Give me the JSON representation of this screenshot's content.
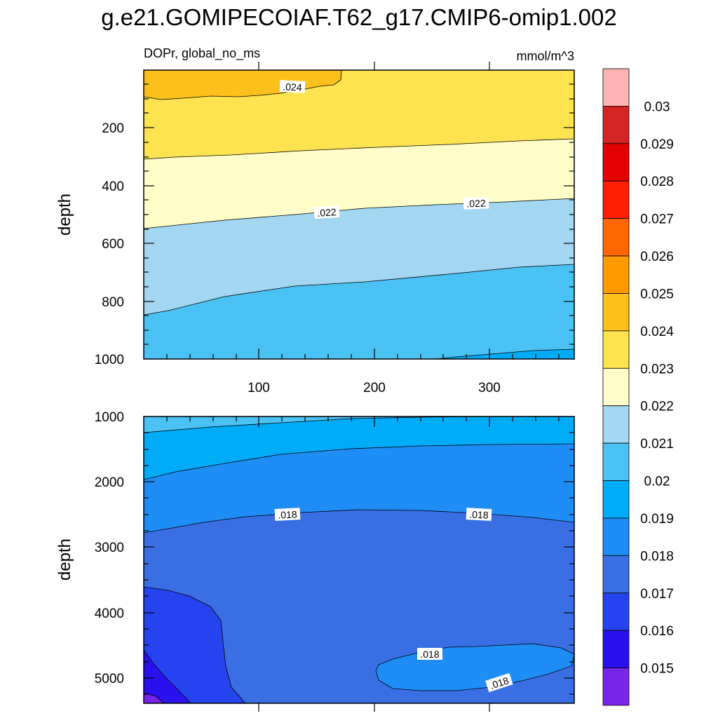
{
  "title": "g.e21.GOMIPECOIAF.T62_g17.CMIP6-omip1.002",
  "chart_data": [
    {
      "type": "contour",
      "panel": "upper",
      "left_string": "DOPr, global_no_ms",
      "right_string": "mmol/m^3",
      "xlabel": "",
      "ylabel": "depth",
      "xlim": [
        0,
        375
      ],
      "ylim": [
        1000,
        0
      ],
      "x_ticks": [
        "100",
        "200",
        "300"
      ],
      "y_ticks": [
        "200",
        "400",
        "600",
        "800",
        "1000"
      ],
      "y_tick_values": [
        200,
        400,
        600,
        800,
        1000
      ],
      "contour_labels": [
        ".024",
        ".022",
        ".022"
      ],
      "bands": [
        {
          "level": "0.024-0.025",
          "color": "#fcc01c"
        },
        {
          "level": "0.023-0.024",
          "color": "#fee350"
        },
        {
          "level": "0.022-0.023",
          "color": "#fffec8"
        },
        {
          "level": "0.021-0.022",
          "color": "#a3d6f0"
        },
        {
          "level": "0.020-0.021",
          "color": "#4bc2f4"
        },
        {
          "level": "0.019-0.020",
          "color": "#00acf8"
        }
      ]
    },
    {
      "type": "contour",
      "panel": "lower",
      "xlabel": "",
      "ylabel": "depth",
      "xlim": [
        0,
        375
      ],
      "ylim": [
        5400,
        1000
      ],
      "y_ticks": [
        "1000",
        "2000",
        "3000",
        "4000",
        "5000"
      ],
      "y_tick_values": [
        1000,
        2000,
        3000,
        4000,
        5000
      ],
      "contour_labels": [
        ".018",
        ".018",
        ".018",
        ".018"
      ],
      "bands": [
        {
          "level": "0.020-0.021",
          "color": "#4bc2f4"
        },
        {
          "level": "0.019-0.020",
          "color": "#00acf8"
        },
        {
          "level": "0.018-0.019",
          "color": "#1e8df5"
        },
        {
          "level": "0.017-0.018",
          "color": "#3a6fe3"
        },
        {
          "level": "0.016-0.017",
          "color": "#2543ee"
        },
        {
          "level": "0.015-0.016",
          "color": "#2a12f0"
        },
        {
          "level": "<0.015",
          "color": "#7a24ea"
        }
      ]
    }
  ],
  "colorbar": {
    "labels": [
      "0.03",
      "0.029",
      "0.028",
      "0.027",
      "0.026",
      "0.025",
      "0.024",
      "0.023",
      "0.022",
      "0.021",
      "0.02",
      "0.019",
      "0.018",
      "0.017",
      "0.016",
      "0.015"
    ],
    "colors": [
      "#ffb4b4",
      "#d42424",
      "#e20000",
      "#ff1e00",
      "#ff6600",
      "#ff9900",
      "#fcc01c",
      "#fee350",
      "#fffec8",
      "#a3d6f0",
      "#4bc2f4",
      "#00acf8",
      "#1e8df5",
      "#3a6fe3",
      "#2543ee",
      "#2a12f0",
      "#7a24ea"
    ]
  }
}
